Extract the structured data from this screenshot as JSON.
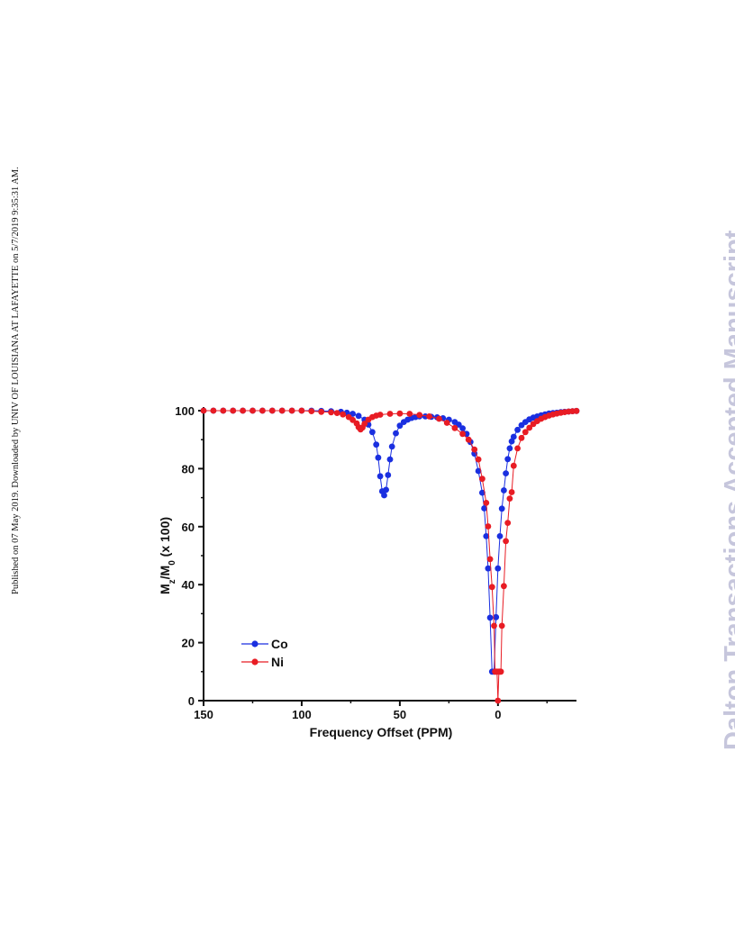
{
  "side_note": "Published on 07 May 2019. Downloaded by UNIV OF LOUISIANA AT LAFAYETTE on 5/7/2019 9:35:31 AM.",
  "watermark": "Dalton Transactions Accepted Manuscript",
  "chart_data": {
    "type": "scatter",
    "title": "",
    "xlabel": "Frequency Offset (PPM)",
    "ylabel": {
      "parts": [
        "M",
        "z",
        "/M",
        "0",
        " (x 100)"
      ]
    },
    "x_reversed": true,
    "xlim": [
      150,
      -40
    ],
    "ylim": [
      0,
      100
    ],
    "x_ticks": [
      150,
      100,
      50,
      0
    ],
    "y_ticks": [
      0,
      20,
      40,
      60,
      80,
      100
    ],
    "grid": false,
    "legend": {
      "placement": "bottom-left",
      "entries": [
        "Co",
        "Ni"
      ]
    },
    "series": [
      {
        "name": "Co",
        "color": "#1a2fe0",
        "x": [
          150,
          145,
          140,
          135,
          130,
          125,
          120,
          115,
          110,
          105,
          100,
          95,
          90,
          85,
          80,
          77,
          74,
          71,
          68,
          66,
          64,
          62,
          61,
          60,
          59,
          58,
          57,
          56,
          55,
          54,
          52,
          50,
          48,
          46,
          44,
          42,
          40,
          37,
          34,
          31,
          28,
          25,
          22,
          20,
          18,
          16,
          14,
          12,
          10,
          8,
          7,
          6,
          5,
          4,
          3,
          2,
          1,
          0,
          -1,
          -2,
          -3,
          -4,
          -5,
          -6,
          -7,
          -8,
          -10,
          -12,
          -14,
          -16,
          -18,
          -20,
          -22,
          -24,
          -26,
          -28,
          -30,
          -32,
          -34,
          -36,
          -38,
          -40
        ],
        "y": [
          100,
          100,
          100,
          100,
          100,
          100,
          100,
          100,
          100,
          100,
          100,
          100,
          99.9,
          99.8,
          99.6,
          99.3,
          98.9,
          98.2,
          96.9,
          95.2,
          92.6,
          88.3,
          83.8,
          77.4,
          72.2,
          70.8,
          72.7,
          77.8,
          83.2,
          87.6,
          92.2,
          94.8,
          96.1,
          96.9,
          97.5,
          97.8,
          98,
          98,
          97.9,
          97.7,
          97.4,
          96.9,
          96.1,
          95.2,
          93.9,
          92,
          89.2,
          85.2,
          79.2,
          71.7,
          66.3,
          56.7,
          45.6,
          28.6,
          10,
          10,
          28.8,
          45.6,
          56.7,
          66.2,
          72.5,
          78.4,
          83.3,
          87,
          89.4,
          91,
          93.4,
          95,
          96.1,
          97,
          97.6,
          98,
          98.4,
          98.7,
          99,
          99.2,
          99.3,
          99.5,
          99.6,
          99.7,
          99.8,
          99.9
        ]
      },
      {
        "name": "Ni",
        "color": "#e81c24",
        "x": [
          150,
          145,
          140,
          135,
          130,
          125,
          120,
          115,
          110,
          105,
          100,
          95,
          90,
          85,
          82,
          79,
          76,
          74,
          72,
          71,
          70,
          69,
          68,
          66,
          64,
          62,
          60,
          55,
          50,
          45,
          40,
          35,
          30,
          26,
          22,
          18,
          15,
          12,
          10,
          8,
          6,
          5,
          4,
          3,
          2,
          1.5,
          1,
          0.5,
          0,
          -0.5,
          -1,
          -1.5,
          -2,
          -3,
          -4,
          -5,
          -6,
          -7,
          -8,
          -10,
          -12,
          -14,
          -16,
          -18,
          -20,
          -22,
          -24,
          -26,
          -28,
          -30,
          -32,
          -34,
          -36,
          -38,
          -40
        ],
        "y": [
          100,
          100,
          100,
          100,
          100,
          100,
          100,
          100,
          100,
          100,
          100,
          99.8,
          99.6,
          99.4,
          99.2,
          98.7,
          97.8,
          96.8,
          95.6,
          94.3,
          93.5,
          94.2,
          95.5,
          96.9,
          97.8,
          98.3,
          98.6,
          98.9,
          99,
          98.9,
          98.5,
          98,
          97.2,
          95.8,
          94,
          92,
          90,
          86.6,
          83.2,
          76.5,
          68.2,
          60.1,
          48.8,
          39.2,
          25.8,
          10,
          10,
          10,
          0,
          10,
          10,
          10,
          25.8,
          39.5,
          55,
          61.3,
          69.7,
          71.9,
          81,
          87,
          90.6,
          92.6,
          94.1,
          95.4,
          96.4,
          97.2,
          97.8,
          98.3,
          98.7,
          99,
          99.3,
          99.5,
          99.7,
          99.8,
          99.9
        ]
      }
    ]
  }
}
